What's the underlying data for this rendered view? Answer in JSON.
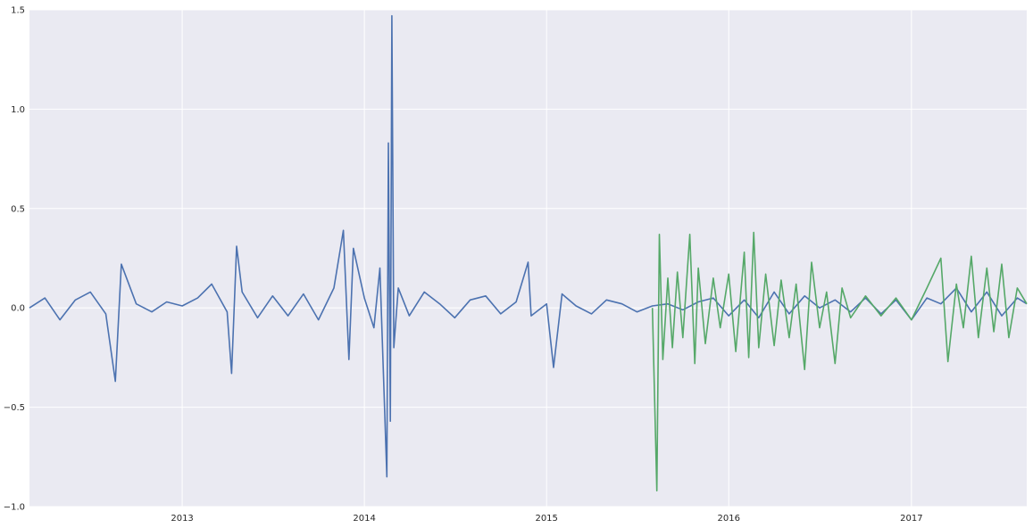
{
  "chart_data": {
    "type": "line",
    "title": "",
    "xlabel": "",
    "ylabel": "",
    "xlim": [
      "2012-03-01",
      "2017-08-20"
    ],
    "ylim": [
      -1.0,
      1.5
    ],
    "grid": true,
    "background": "#EAEAF2",
    "grid_color": "#FFFFFF",
    "x_ticks": [
      "2013-01-01",
      "2014-01-01",
      "2015-01-01",
      "2016-01-01",
      "2017-01-01"
    ],
    "x_tick_labels": [
      "2013",
      "2014",
      "2015",
      "2016",
      "2017"
    ],
    "y_ticks": [
      -1.0,
      -0.5,
      0.0,
      0.5,
      1.0,
      1.5
    ],
    "y_tick_labels": [
      "−1.0",
      "−0.5",
      "0.0",
      "0.5",
      "1.0",
      "1.5"
    ],
    "series": [
      {
        "color": "#4C72B0",
        "x": [
          "2012-03-01",
          "2012-04-01",
          "2012-05-01",
          "2012-06-01",
          "2012-07-01",
          "2012-08-01",
          "2012-08-20",
          "2012-09-01",
          "2012-10-01",
          "2012-11-01",
          "2012-12-01",
          "2013-01-01",
          "2013-02-01",
          "2013-03-01",
          "2013-04-01",
          "2013-04-10",
          "2013-04-20",
          "2013-05-01",
          "2013-06-01",
          "2013-07-01",
          "2013-08-01",
          "2013-09-01",
          "2013-10-01",
          "2013-11-01",
          "2013-11-20",
          "2013-12-01",
          "2013-12-10",
          "2014-01-01",
          "2014-01-20",
          "2014-02-01",
          "2014-02-15",
          "2014-02-18",
          "2014-02-22",
          "2014-02-25",
          "2014-03-01",
          "2014-03-10",
          "2014-04-01",
          "2014-05-01",
          "2014-06-01",
          "2014-07-01",
          "2014-08-01",
          "2014-09-01",
          "2014-10-01",
          "2014-11-01",
          "2014-11-25",
          "2014-12-01",
          "2015-01-01",
          "2015-01-15",
          "2015-02-01",
          "2015-03-01",
          "2015-04-01",
          "2015-05-01",
          "2015-06-01",
          "2015-07-01",
          "2015-08-01",
          "2015-09-01",
          "2015-10-01",
          "2015-11-01",
          "2015-12-01",
          "2016-01-01",
          "2016-02-01",
          "2016-03-01",
          "2016-04-01",
          "2016-05-01",
          "2016-06-01",
          "2016-07-01",
          "2016-08-01",
          "2016-09-01",
          "2016-10-01",
          "2016-11-01",
          "2016-12-01",
          "2017-01-01",
          "2017-02-01",
          "2017-03-01",
          "2017-04-01",
          "2017-05-01",
          "2017-06-01",
          "2017-07-01",
          "2017-08-01",
          "2017-08-20"
        ],
        "y": [
          0.0,
          0.05,
          -0.06,
          0.04,
          0.08,
          -0.03,
          -0.37,
          0.22,
          0.02,
          -0.02,
          0.03,
          0.01,
          0.05,
          0.12,
          -0.02,
          -0.33,
          0.31,
          0.08,
          -0.05,
          0.06,
          -0.04,
          0.07,
          -0.06,
          0.1,
          0.39,
          -0.26,
          0.3,
          0.05,
          -0.1,
          0.2,
          -0.85,
          0.83,
          -0.57,
          1.47,
          -0.2,
          0.1,
          -0.04,
          0.08,
          0.02,
          -0.05,
          0.04,
          0.06,
          -0.03,
          0.03,
          0.23,
          -0.04,
          0.02,
          -0.3,
          0.07,
          0.01,
          -0.03,
          0.04,
          0.02,
          -0.02,
          0.01,
          0.02,
          -0.01,
          0.03,
          0.05,
          -0.04,
          0.04,
          -0.05,
          0.08,
          -0.03,
          0.06,
          0.0,
          0.04,
          -0.02,
          0.05,
          -0.03,
          0.04,
          -0.06,
          0.05,
          0.02,
          0.1,
          -0.02,
          0.08,
          -0.04,
          0.05,
          0.02
        ]
      },
      {
        "color": "#55A868",
        "x": [
          "2015-08-01",
          "2015-08-10",
          "2015-08-15",
          "2015-08-22",
          "2015-09-01",
          "2015-09-10",
          "2015-09-20",
          "2015-10-01",
          "2015-10-15",
          "2015-10-25",
          "2015-11-01",
          "2015-11-15",
          "2015-12-01",
          "2015-12-15",
          "2016-01-01",
          "2016-01-15",
          "2016-02-01",
          "2016-02-10",
          "2016-02-20",
          "2016-03-01",
          "2016-03-15",
          "2016-04-01",
          "2016-04-15",
          "2016-05-01",
          "2016-05-15",
          "2016-06-01",
          "2016-06-15",
          "2016-07-01",
          "2016-07-15",
          "2016-08-01",
          "2016-08-15",
          "2016-09-01",
          "2016-10-01",
          "2016-11-01",
          "2016-12-01",
          "2017-01-01",
          "2017-02-01",
          "2017-03-01",
          "2017-03-15",
          "2017-04-01",
          "2017-04-15",
          "2017-05-01",
          "2017-05-15",
          "2017-06-01",
          "2017-06-15",
          "2017-07-01",
          "2017-07-15",
          "2017-08-01",
          "2017-08-20"
        ],
        "y": [
          0.0,
          -0.92,
          0.37,
          -0.26,
          0.15,
          -0.2,
          0.18,
          -0.15,
          0.37,
          -0.28,
          0.2,
          -0.18,
          0.15,
          -0.1,
          0.17,
          -0.22,
          0.28,
          -0.25,
          0.38,
          -0.2,
          0.17,
          -0.19,
          0.14,
          -0.15,
          0.12,
          -0.31,
          0.23,
          -0.1,
          0.08,
          -0.28,
          0.1,
          -0.05,
          0.06,
          -0.04,
          0.05,
          -0.06,
          0.1,
          0.25,
          -0.27,
          0.12,
          -0.1,
          0.26,
          -0.15,
          0.2,
          -0.12,
          0.22,
          -0.15,
          0.1,
          0.02
        ]
      }
    ]
  }
}
